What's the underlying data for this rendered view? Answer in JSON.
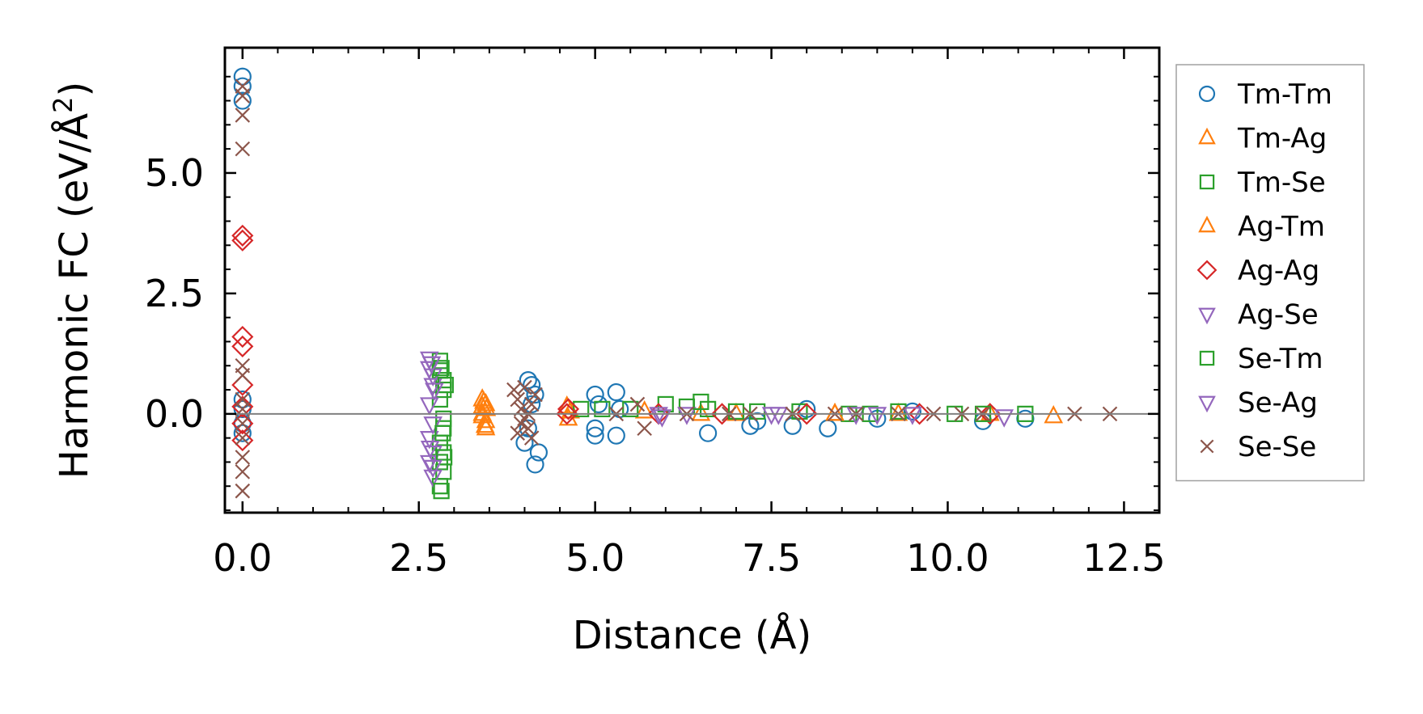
{
  "chart_data": {
    "type": "scatter",
    "title": "",
    "xlabel": "Distance (Å)",
    "ylabel_main": "Harmonic FC (eV/Å",
    "ylabel_sup": "2",
    "ylabel_close": ")",
    "xlim": [
      -0.25,
      13.0
    ],
    "ylim": [
      -2.05,
      7.6
    ],
    "xticks": [
      0.0,
      2.5,
      5.0,
      7.5,
      10.0,
      12.5
    ],
    "xtick_labels": [
      "0.0",
      "2.5",
      "5.0",
      "7.5",
      "10.0",
      "12.5"
    ],
    "yticks": [
      0.0,
      2.5,
      5.0
    ],
    "ytick_labels": [
      "0.0",
      "2.5",
      "5.0"
    ],
    "reference_line_y": 0.0,
    "legend_position": "outside-right",
    "series": [
      {
        "name": "Tm-Tm",
        "marker": "circle",
        "color": "#1f77b4",
        "x": [
          0,
          0,
          0,
          0,
          0,
          0,
          0,
          4.05,
          4.1,
          4.15,
          4.2,
          4.0,
          4.1,
          4.05,
          4.15,
          5.0,
          5.0,
          5.0,
          5.05,
          5.3,
          5.3,
          5.35,
          6.6,
          7.2,
          7.3,
          7.8,
          8.3,
          8.0,
          9.0,
          9.5,
          10.5,
          11.1
        ],
        "y": [
          7.0,
          6.8,
          6.5,
          0.3,
          0.1,
          -0.2,
          -0.4,
          0.7,
          0.6,
          0.4,
          -0.8,
          -0.6,
          0.2,
          -0.3,
          -1.05,
          0.4,
          -0.3,
          -0.45,
          0.2,
          0.45,
          -0.45,
          0.1,
          -0.4,
          -0.25,
          -0.15,
          -0.25,
          -0.3,
          0.1,
          -0.1,
          0.05,
          -0.15,
          -0.1
        ]
      },
      {
        "name": "Tm-Ag",
        "marker": "triangle-up",
        "color": "#ff7f0e",
        "x": [
          3.4,
          3.4,
          3.4,
          3.45,
          3.45,
          3.45,
          3.4,
          4.6,
          4.65,
          5.7,
          6.5,
          7.0,
          8.4,
          9.3,
          10.6,
          11.5
        ],
        "y": [
          0.3,
          0.15,
          0.0,
          -0.15,
          -0.3,
          0.2,
          -0.05,
          0.15,
          0.05,
          0.05,
          0.0,
          0.0,
          0.0,
          0.0,
          0.0,
          -0.05
        ]
      },
      {
        "name": "Tm-Se",
        "marker": "square",
        "color": "#2ca02c",
        "x": [
          2.8,
          2.8,
          2.85,
          2.85,
          2.8,
          2.85,
          2.8,
          2.85,
          2.8,
          2.85,
          2.8,
          2.85,
          4.8,
          5.1,
          5.5,
          6.0,
          6.3,
          6.6,
          7.3,
          7.9,
          8.6,
          9.3,
          10.1,
          11.1
        ],
        "y": [
          1.1,
          0.9,
          0.7,
          0.5,
          0.3,
          -0.3,
          -0.6,
          -0.8,
          -1.0,
          -1.2,
          -1.5,
          -0.1,
          0.1,
          0.1,
          0.1,
          0.2,
          0.15,
          0.1,
          0.05,
          0.05,
          0.0,
          0.05,
          0.0,
          0.0
        ]
      },
      {
        "name": "Ag-Tm",
        "marker": "triangle-up",
        "color": "#ff7f0e",
        "x": [
          3.42,
          3.44,
          3.46,
          4.62,
          8.4
        ],
        "y": [
          0.25,
          -0.25,
          0.1,
          -0.1,
          0.0
        ]
      },
      {
        "name": "Ag-Ag",
        "marker": "diamond",
        "color": "#d62728",
        "x": [
          0,
          0,
          0,
          0,
          0,
          0,
          0,
          0,
          4.6,
          4.62,
          5.9,
          6.8,
          8.0,
          9.6,
          10.6
        ],
        "y": [
          3.7,
          3.6,
          1.6,
          1.4,
          0.6,
          0.15,
          -0.2,
          -0.55,
          0.0,
          0.1,
          0.0,
          0.0,
          0.0,
          0.0,
          0.0
        ]
      },
      {
        "name": "Ag-Se",
        "marker": "triangle-down",
        "color": "#9467bd",
        "x": [
          2.65,
          2.65,
          2.7,
          2.7,
          2.65,
          2.7,
          2.65,
          2.7,
          2.65,
          2.7,
          5.9,
          6.3,
          7.5,
          8.7,
          9.5,
          10.8
        ],
        "y": [
          1.15,
          0.95,
          0.8,
          0.6,
          0.2,
          -0.2,
          -0.5,
          -0.8,
          -1.0,
          -1.3,
          0.0,
          0.0,
          0.0,
          0.0,
          0.0,
          -0.05
        ]
      },
      {
        "name": "Se-Tm",
        "marker": "square",
        "color": "#2ca02c",
        "x": [
          2.82,
          2.88,
          2.84,
          2.86,
          2.82,
          6.5,
          7.0,
          8.9,
          10.5
        ],
        "y": [
          0.95,
          0.6,
          -0.4,
          -0.9,
          -1.6,
          0.25,
          0.05,
          0.0,
          0.0
        ]
      },
      {
        "name": "Se-Ag",
        "marker": "triangle-down",
        "color": "#9467bd",
        "x": [
          2.68,
          2.72,
          2.66,
          2.7,
          5.95,
          7.6,
          9.0
        ],
        "y": [
          1.05,
          0.5,
          -0.7,
          -1.1,
          -0.05,
          0.0,
          0.0
        ]
      },
      {
        "name": "Se-Se",
        "marker": "x",
        "color": "#8c564b",
        "x": [
          0,
          0,
          0,
          0,
          0,
          0,
          0,
          0,
          0,
          0,
          0,
          0,
          0,
          3.85,
          3.9,
          3.95,
          4.0,
          4.05,
          4.1,
          4.15,
          3.9,
          4.0,
          4.1,
          3.95,
          4.05,
          5.3,
          5.6,
          5.7,
          6.3,
          6.9,
          7.2,
          7.8,
          8.4,
          8.7,
          9.3,
          9.8,
          10.2,
          10.5,
          11.8,
          12.3
        ],
        "y": [
          6.8,
          6.6,
          6.2,
          5.5,
          1.0,
          0.8,
          0.3,
          0.1,
          -0.2,
          -0.5,
          -0.9,
          -1.2,
          -1.6,
          0.5,
          0.3,
          0.1,
          -0.1,
          -0.3,
          -0.5,
          0.4,
          -0.4,
          0.55,
          0.2,
          -0.2,
          0.0,
          0.0,
          0.2,
          -0.3,
          0.0,
          0.0,
          0.0,
          0.0,
          0.0,
          0.0,
          0.0,
          0.0,
          0.0,
          0.0,
          0.0,
          0.0
        ]
      }
    ]
  }
}
